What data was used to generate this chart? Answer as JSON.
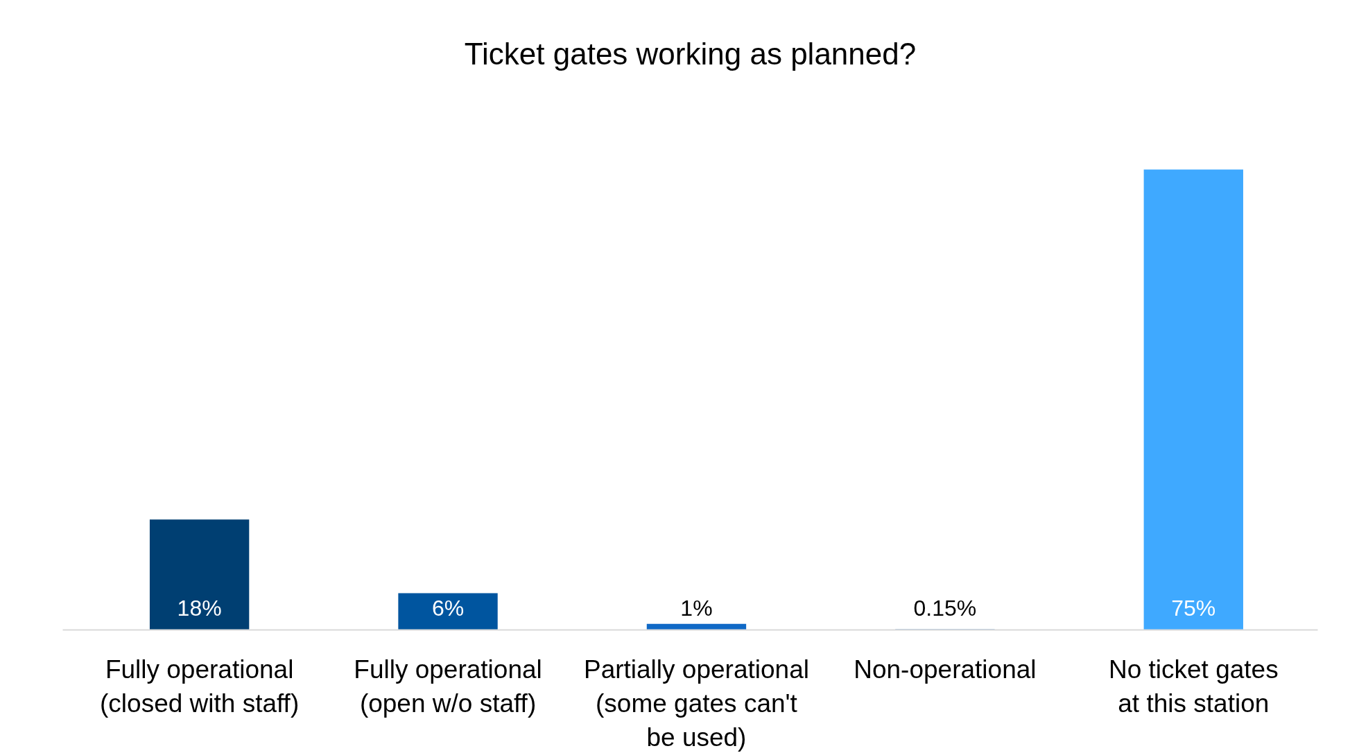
{
  "chart_data": {
    "type": "bar",
    "title": "Ticket gates working as planned?",
    "categories": [
      "Fully operational\n(closed with staff)",
      "Fully operational\n(open w/o staff)",
      "Partially operational\n(some gates can't\nbe used)",
      "Non-operational",
      "No ticket gates\nat this station"
    ],
    "values": [
      18,
      6,
      1,
      0.15,
      75
    ],
    "colors": [
      "#003f72",
      "#00559f",
      "#1069c6",
      "#8fb3d9",
      "#3fa9ff"
    ],
    "value_labels": [
      "18%",
      "6%",
      "1%",
      "0.15%",
      "75%"
    ],
    "grid": false
  }
}
